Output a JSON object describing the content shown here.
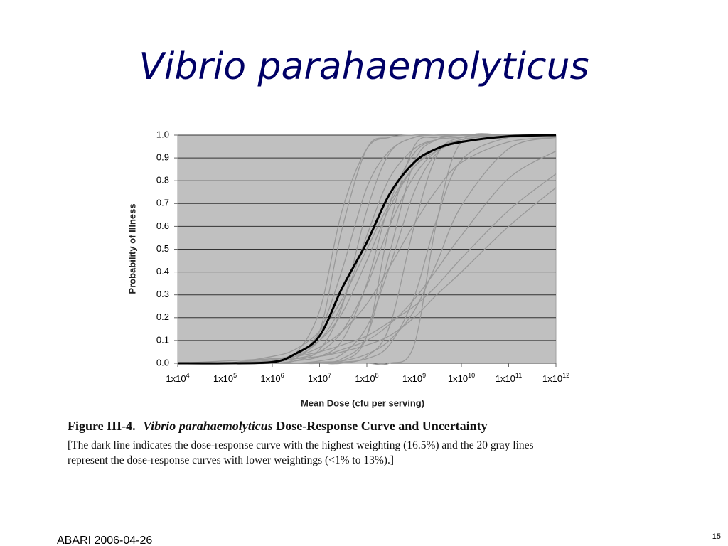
{
  "slide": {
    "title": "Vibrio parahaemolyticus",
    "footer": "ABARI 2006-04-26",
    "page_number": "15"
  },
  "caption": {
    "figure_label": "Figure III-4.",
    "italic": "Vibrio parahaemolyticus",
    "rest": "Dose-Response Curve and Uncertainty",
    "lines": [
      "[The dark line indicates the dose-response curve with the highest weighting (16.5%) and the 20 gray lines",
      "represent the dose-response curves with lower weightings (<1% to 13%).]"
    ]
  },
  "chart_data": {
    "type": "line",
    "x_label": "Mean Dose (cfu per serving)",
    "y_label": "Probability of Illness",
    "xscale": "log",
    "grid": true,
    "xlim": [
      10000,
      1000000000000
    ],
    "ylim": [
      0,
      1
    ],
    "xticks": [
      {
        "value": 10000,
        "label": "1x10",
        "exponent": "4"
      },
      {
        "value": 100000,
        "label": "1x10",
        "exponent": "5"
      },
      {
        "value": 1000000,
        "label": "1x10",
        "exponent": "6"
      },
      {
        "value": 10000000,
        "label": "1x10",
        "exponent": "7"
      },
      {
        "value": 100000000,
        "label": "1x10",
        "exponent": "8"
      },
      {
        "value": 1000000000,
        "label": "1x10",
        "exponent": "9"
      },
      {
        "value": 10000000000,
        "label": "1x10",
        "exponent": "10"
      },
      {
        "value": 100000000000,
        "label": "1x10",
        "exponent": "11"
      },
      {
        "value": 1000000000000,
        "label": "1x10",
        "exponent": "12"
      }
    ],
    "yticks": [
      {
        "value": 0,
        "label": "0.0"
      },
      0.1,
      0.2,
      0.3,
      0.4,
      0.5,
      0.6,
      0.7,
      0.8,
      0.9,
      {
        "value": 1,
        "label": "1.0"
      }
    ],
    "x": [
      10000,
      100000,
      1000000,
      3000000,
      10000000,
      30000000,
      100000000,
      300000000,
      1000000000,
      3000000000,
      10000000000,
      100000000000,
      1000000000000
    ],
    "series": [
      {
        "color": "#999999",
        "values": [
          0,
          0,
          0.005,
          0.04,
          0.23,
          0.67,
          0.94,
          0.99,
          1,
          1,
          1,
          1,
          1
        ]
      },
      {
        "color": "#999999",
        "values": [
          0,
          0,
          0.01,
          0.03,
          0.14,
          0.41,
          0.77,
          0.93,
          0.99,
          1,
          1,
          1,
          1
        ]
      },
      {
        "color": "#999999",
        "values": [
          0,
          0,
          0.01,
          0.03,
          0.1,
          0.26,
          0.56,
          0.81,
          0.94,
          0.98,
          0.99,
          1,
          1
        ]
      },
      {
        "color": "#999999",
        "values": [
          0,
          0,
          0,
          0.01,
          0.03,
          0.1,
          0.35,
          0.7,
          0.92,
          0.98,
          1,
          1,
          1
        ]
      },
      {
        "color": "#999999",
        "values": [
          0,
          0,
          0,
          0,
          0,
          0.02,
          0.12,
          0.48,
          0.88,
          0.98,
          1,
          1,
          1
        ]
      },
      {
        "color": "#999999",
        "values": [
          0,
          0,
          0,
          0,
          0,
          0,
          0.03,
          0.16,
          0.6,
          0.91,
          0.99,
          1,
          1
        ]
      },
      {
        "color": "#999999",
        "values": [
          0,
          0,
          0,
          0,
          0,
          0.005,
          0.02,
          0.08,
          0.29,
          0.63,
          0.89,
          0.99,
          1
        ]
      },
      {
        "color": "#999999",
        "values": [
          0,
          0,
          0.015,
          0.04,
          0.1,
          0.22,
          0.45,
          0.68,
          0.86,
          0.94,
          0.98,
          1,
          1
        ]
      },
      {
        "color": "#999999",
        "values": [
          0,
          0,
          0.02,
          0.03,
          0.07,
          0.14,
          0.26,
          0.42,
          0.61,
          0.76,
          0.88,
          0.97,
          0.99
        ]
      },
      {
        "color": "#999999",
        "values": [
          0,
          0,
          0.01,
          0.02,
          0.03,
          0.06,
          0.1,
          0.17,
          0.28,
          0.41,
          0.56,
          0.81,
          0.93
        ]
      },
      {
        "color": "#999999",
        "values": [
          0,
          0.01,
          0.02,
          0.03,
          0.05,
          0.08,
          0.12,
          0.18,
          0.25,
          0.34,
          0.46,
          0.67,
          0.83
        ]
      },
      {
        "color": "#999999",
        "values": [
          0,
          0,
          0,
          0.01,
          0.06,
          0.25,
          0.67,
          0.92,
          0.99,
          1,
          1,
          1,
          1
        ]
      },
      {
        "color": "#999999",
        "values": [
          0,
          0,
          0.01,
          0.02,
          0.05,
          0.14,
          0.34,
          0.6,
          0.82,
          0.93,
          0.98,
          1,
          1
        ]
      },
      {
        "color": "#999999",
        "values": [
          0,
          0,
          0,
          0,
          0,
          0,
          0,
          0,
          0.08,
          0.62,
          0.97,
          1,
          1
        ]
      },
      {
        "color": "#999999",
        "values": [
          0,
          0,
          0,
          0.02,
          0.14,
          0.59,
          0.94,
          0.99,
          1,
          1,
          1,
          1,
          1
        ]
      },
      {
        "color": "#999999",
        "values": [
          0,
          0,
          0,
          0,
          0.01,
          0.04,
          0.16,
          0.42,
          0.75,
          0.92,
          0.98,
          1,
          1
        ]
      },
      {
        "color": "#999999",
        "values": [
          0,
          0,
          0,
          0,
          0.005,
          0.01,
          0.04,
          0.1,
          0.23,
          0.44,
          0.69,
          0.94,
          0.99
        ]
      },
      {
        "color": "#999999",
        "values": [
          0,
          0,
          0.03,
          0.06,
          0.14,
          0.28,
          0.5,
          0.7,
          0.86,
          0.93,
          0.97,
          0.99,
          1
        ]
      },
      {
        "color": "#999999",
        "values": [
          0,
          0,
          0,
          0,
          0,
          0.01,
          0.12,
          0.6,
          0.95,
          0.99,
          1,
          1,
          1
        ]
      },
      {
        "color": "#999999",
        "values": [
          0,
          0,
          0.01,
          0.02,
          0.03,
          0.05,
          0.08,
          0.12,
          0.2,
          0.3,
          0.4,
          0.6,
          0.77
        ]
      },
      {
        "color": "#000000",
        "values": [
          0,
          0,
          0.005,
          0.04,
          0.12,
          0.33,
          0.53,
          0.74,
          0.88,
          0.94,
          0.97,
          0.995,
          1
        ]
      }
    ]
  }
}
